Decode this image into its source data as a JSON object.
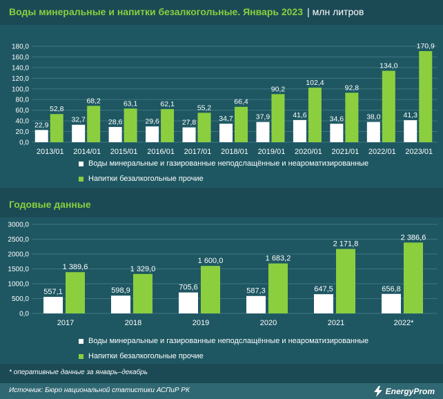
{
  "header": {
    "title": "Воды минеральные и напитки безалкогольные. Январь 2023",
    "unit": "млн литров"
  },
  "section2_title": "Годовые данные",
  "colors": {
    "series1": "#ffffff",
    "series2": "#8bcf3f",
    "title": "#8bcf3f",
    "background": "#1b4a55"
  },
  "chart_data": [
    {
      "type": "bar",
      "categories": [
        "2013/01",
        "2014/01",
        "2015/01",
        "2016/01",
        "2017/01",
        "2018/01",
        "2019/01",
        "2020/01",
        "2021/01",
        "2022/01",
        "2023/01"
      ],
      "series": [
        {
          "name": "Воды минеральные и газированные неподслащённые и неароматизированные",
          "values": [
            22.9,
            32.7,
            28.6,
            29.6,
            27.8,
            34.7,
            37.9,
            41.6,
            34.6,
            38.0,
            41.3
          ],
          "labels": [
            "22,9",
            "32,7",
            "28,6",
            "29,6",
            "27,8",
            "34,7",
            "37,9",
            "41,6",
            "34,6",
            "38,0",
            "41,3"
          ]
        },
        {
          "name": "Напитки безалкогольные прочие",
          "values": [
            52.8,
            68.2,
            63.1,
            62.1,
            55.2,
            66.4,
            90.2,
            102.4,
            92.8,
            134.0,
            170.9
          ],
          "labels": [
            "52,8",
            "68,2",
            "63,1",
            "62,1",
            "55,2",
            "66,4",
            "90,2",
            "102,4",
            "92,8",
            "134,0",
            "170,9"
          ]
        }
      ],
      "yticks": [
        "0,0",
        "20,0",
        "40,0",
        "60,0",
        "80,0",
        "100,0",
        "120,0",
        "140,0",
        "160,0",
        "180,0"
      ],
      "ylim": [
        0,
        180
      ],
      "grid": true,
      "legend": "bottom"
    },
    {
      "type": "bar",
      "categories": [
        "2017",
        "2018",
        "2019",
        "2020",
        "2021",
        "2022*"
      ],
      "series": [
        {
          "name": "Воды минеральные и газированные неподслащённые и неароматизированные",
          "values": [
            557.1,
            598.9,
            705.6,
            587.3,
            647.5,
            656.8
          ],
          "labels": [
            "557,1",
            "598,9",
            "705,6",
            "587,3",
            "647,5",
            "656,8"
          ]
        },
        {
          "name": "Напитки безалкогольные прочие",
          "values": [
            1389.6,
            1329.0,
            1600.0,
            1683.2,
            2171.8,
            2386.6
          ],
          "labels": [
            "1 389,6",
            "1 329,0",
            "1 600,0",
            "1 683,2",
            "2 171,8",
            "2 386,6"
          ]
        }
      ],
      "yticks": [
        "0,0",
        "500,0",
        "1000,0",
        "1500,0",
        "2000,0",
        "2500,0",
        "3000,0"
      ],
      "ylim": [
        0,
        3000
      ],
      "grid": true,
      "legend": "bottom"
    }
  ],
  "legend": {
    "series1": "Воды минеральные и газированные неподслащённые и неароматизированные",
    "series2": "Напитки безалкогольные прочие"
  },
  "footnote": "* оперативные данные за январь–декабрь",
  "source": "Источник: Бюро национальной статистики АСПиР РК",
  "logo": "EnergyProm"
}
